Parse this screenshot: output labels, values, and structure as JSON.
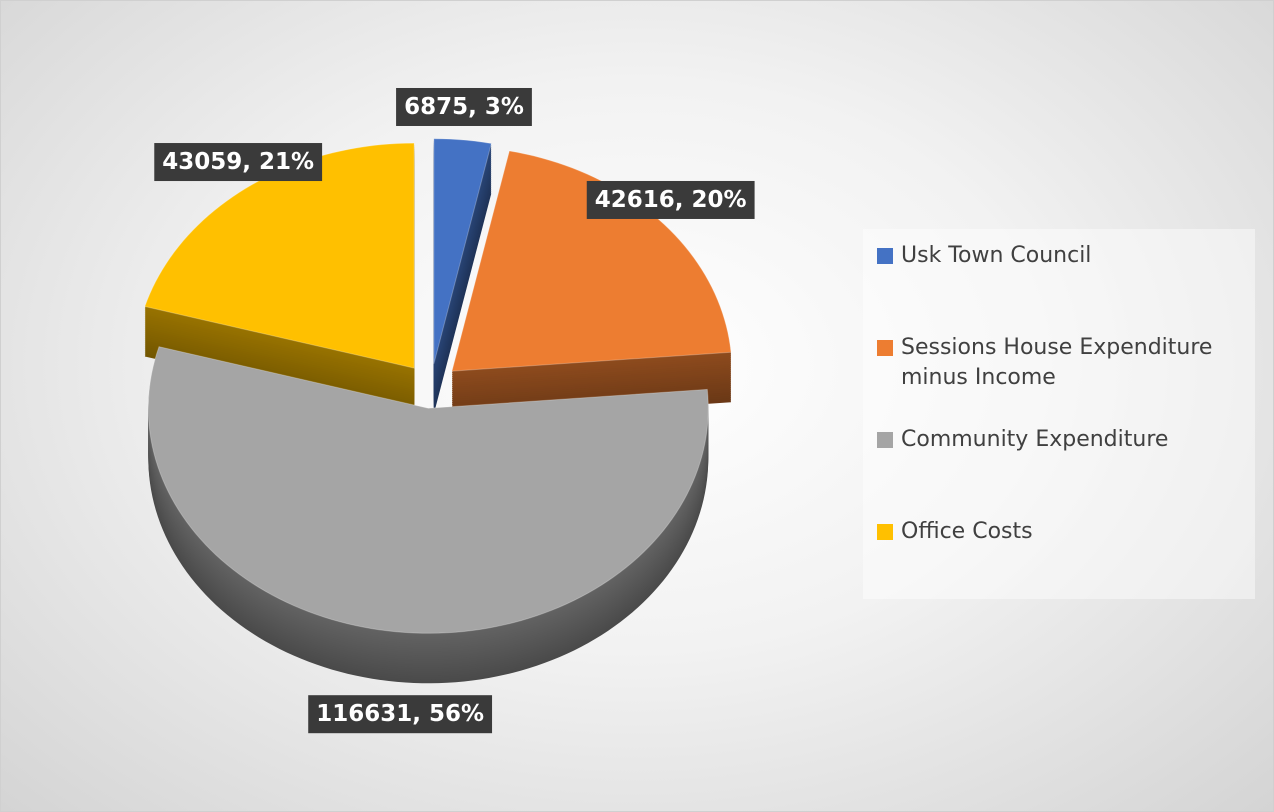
{
  "chart_data": {
    "type": "pie",
    "categories": [
      "Usk Town Council",
      "Sessions House Expenditure minus Income",
      "Community Expenditure",
      "Office Costs"
    ],
    "values": [
      6875,
      42616,
      116631,
      43059
    ],
    "value_labels": [
      "6875, 3%",
      "42616, 20%",
      "116631, 56%",
      "43059, 21%"
    ],
    "colors": [
      "#4472c4",
      "#ed7d31",
      "#a5a5a5",
      "#ffc000"
    ],
    "legend": "right"
  }
}
